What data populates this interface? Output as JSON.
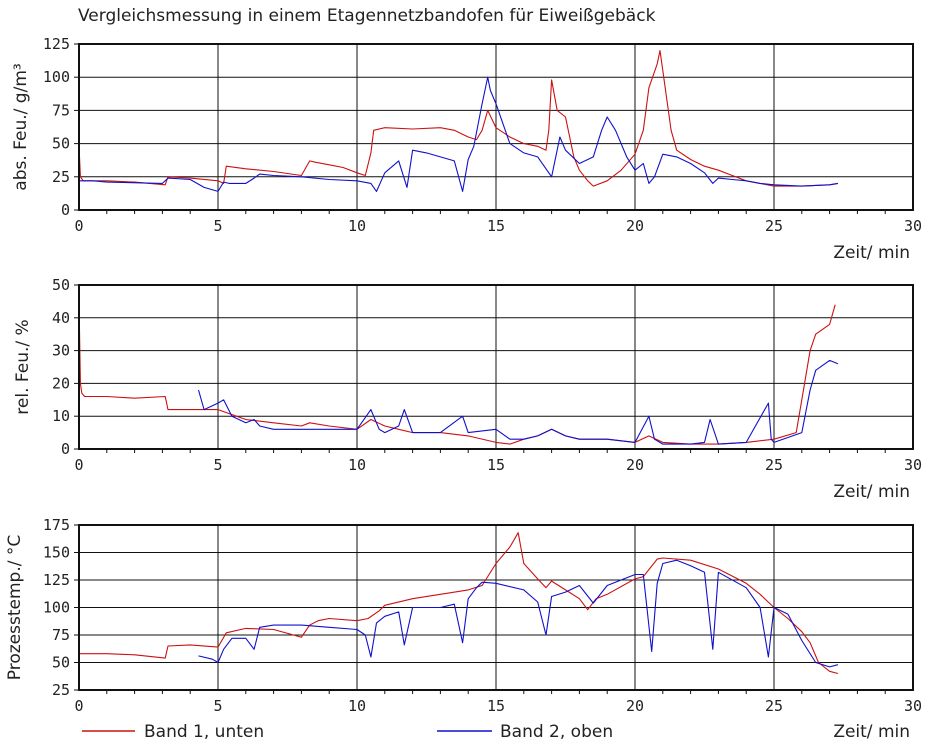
{
  "figure": {
    "title": "Vergleichsmessung in einem Etagennetzbandofen für Eiweißgebäck",
    "legend": [
      {
        "label": "Band 1, unten",
        "color": "#cc1111"
      },
      {
        "label": "Band 2, oben",
        "color": "#1111cc"
      }
    ]
  },
  "chart_data": [
    {
      "type": "line",
      "ylabel": "abs. Feu./ g/m³",
      "xlabel": "Zeit/ min",
      "xlim": [
        0,
        30
      ],
      "ylim": [
        0,
        125
      ],
      "xticks": [
        "0",
        "5",
        "10",
        "15",
        "20",
        "25",
        "30"
      ],
      "yticks": [
        "0",
        "25",
        "50",
        "75",
        "100",
        "125"
      ],
      "grid": true,
      "series": [
        {
          "name": "Band 1, unten",
          "color": "#cc1111",
          "x": [
            0,
            0.05,
            0.15,
            1,
            2,
            3.1,
            3.2,
            4,
            5,
            5.2,
            5.3,
            6,
            7,
            8,
            8.3,
            8.5,
            9,
            9.5,
            10,
            10.3,
            10.5,
            10.6,
            11,
            12,
            13,
            13.5,
            14,
            14.3,
            14.5,
            14.7,
            15,
            15.5,
            16,
            16.5,
            16.8,
            16.9,
            17,
            17.2,
            17.5,
            17.8,
            18,
            18.3,
            18.5,
            19,
            19.5,
            20,
            20.3,
            20.5,
            20.8,
            20.9,
            21,
            21.3,
            21.5,
            22,
            22.5,
            23,
            23.5,
            24,
            24.5,
            25,
            26,
            27,
            27.3
          ],
          "y": [
            48,
            25,
            22,
            22,
            21,
            19,
            25,
            24,
            22,
            20,
            33,
            31,
            29,
            26,
            37,
            36,
            34,
            32,
            28,
            26,
            43,
            60,
            62,
            61,
            62,
            60,
            55,
            53,
            60,
            75,
            62,
            55,
            50,
            48,
            45,
            60,
            98,
            75,
            70,
            40,
            30,
            22,
            18,
            22,
            30,
            42,
            60,
            92,
            110,
            120,
            105,
            60,
            45,
            38,
            33,
            30,
            26,
            22,
            20,
            18,
            18,
            19,
            20
          ]
        },
        {
          "name": "Band 2, oben",
          "color": "#1111cc",
          "x": [
            0,
            0.5,
            1,
            3,
            3.2,
            4,
            4.5,
            5,
            5.2,
            5.4,
            6,
            6.3,
            6.5,
            7,
            8,
            9,
            10,
            10.5,
            10.7,
            11,
            11.5,
            11.8,
            12,
            12.5,
            13,
            13.5,
            13.8,
            14,
            14.2,
            14.5,
            14.7,
            14.8,
            15,
            15.5,
            16,
            16.5,
            17,
            17.3,
            17.5,
            18,
            18.5,
            18.8,
            19,
            19.3,
            19.7,
            20,
            20.3,
            20.5,
            20.7,
            21,
            21.5,
            22,
            22.5,
            22.8,
            23,
            23.5,
            24,
            24.5,
            25,
            26,
            27,
            27.3
          ],
          "y": [
            22,
            22,
            21,
            20,
            24,
            23,
            17,
            14,
            21,
            20,
            20,
            24,
            27,
            26,
            25,
            23,
            22,
            20,
            14,
            28,
            37,
            17,
            45,
            43,
            40,
            37,
            14,
            38,
            48,
            80,
            100,
            90,
            80,
            50,
            43,
            40,
            25,
            55,
            45,
            35,
            40,
            60,
            70,
            60,
            40,
            30,
            35,
            20,
            25,
            42,
            40,
            35,
            28,
            20,
            24,
            23,
            22,
            20,
            19,
            18,
            19,
            20
          ]
        }
      ]
    },
    {
      "type": "line",
      "ylabel": "rel. Feu./ %",
      "xlabel": "Zeit/ min",
      "xlim": [
        0,
        30
      ],
      "ylim": [
        0,
        50
      ],
      "xticks": [
        "0",
        "5",
        "10",
        "15",
        "20",
        "25",
        "30"
      ],
      "yticks": [
        "0",
        "10",
        "20",
        "30",
        "40",
        "50"
      ],
      "grid": true,
      "series": [
        {
          "name": "Band 1, unten",
          "color": "#cc1111",
          "x": [
            0,
            0.05,
            0.1,
            0.2,
            1,
            2,
            3.1,
            3.2,
            4,
            5,
            6,
            7,
            8,
            8.3,
            9,
            10,
            10.5,
            11,
            11.5,
            12,
            13,
            14,
            15,
            15.5,
            16,
            16.5,
            17,
            17.5,
            18,
            19,
            20,
            20.5,
            21,
            22,
            23,
            24,
            25,
            25.8,
            26,
            26.3,
            26.5,
            27,
            27.2
          ],
          "y": [
            45,
            20,
            17,
            16,
            16,
            15.5,
            16,
            12,
            12,
            12,
            9,
            8,
            7,
            8,
            7,
            6,
            9,
            7,
            6,
            5,
            5,
            4,
            2,
            1.5,
            3,
            4,
            6,
            4,
            3,
            3,
            2,
            4,
            2,
            1.5,
            1.5,
            2,
            3,
            5,
            15,
            30,
            35,
            38,
            44
          ]
        },
        {
          "name": "Band 2, oben",
          "color": "#1111cc",
          "x": [
            4.3,
            4.5,
            5,
            5.2,
            5.5,
            6,
            6.3,
            6.5,
            7,
            8,
            9,
            10,
            10.5,
            10.8,
            11,
            11.5,
            11.7,
            12,
            13,
            13.8,
            14,
            15,
            15.5,
            16,
            16.5,
            17,
            17.5,
            18,
            19,
            20,
            20.5,
            20.7,
            21,
            22,
            22.5,
            22.7,
            23,
            24,
            24.8,
            24.9,
            25,
            26,
            26.3,
            26.5,
            27,
            27.3
          ],
          "y": [
            18,
            12,
            14,
            15,
            10,
            8,
            9,
            7,
            6,
            6,
            6,
            6,
            12,
            6,
            5,
            7,
            12,
            5,
            5,
            10,
            5,
            6,
            3,
            3,
            4,
            6,
            4,
            3,
            3,
            2,
            10,
            3,
            1.5,
            1.5,
            2,
            9,
            1.5,
            2,
            14,
            3,
            2,
            5,
            18,
            24,
            27,
            26
          ]
        }
      ]
    },
    {
      "type": "line",
      "ylabel": "Prozesstemp./ °C",
      "xlabel": "Zeit/ min",
      "xlim": [
        0,
        30
      ],
      "ylim": [
        25,
        175
      ],
      "xticks": [
        "0",
        "5",
        "10",
        "15",
        "20",
        "25",
        "30"
      ],
      "yticks": [
        "25",
        "50",
        "75",
        "100",
        "125",
        "150",
        "175"
      ],
      "grid": true,
      "series": [
        {
          "name": "Band 1, unten",
          "color": "#cc1111",
          "x": [
            0,
            1,
            2,
            3.1,
            3.2,
            4,
            5,
            5.3,
            6,
            7,
            8,
            8.3,
            8.6,
            9,
            10,
            10.4,
            10.8,
            11,
            12,
            13,
            14,
            14.5,
            15,
            15.5,
            15.8,
            16,
            16.5,
            16.8,
            17,
            17.5,
            18,
            18.3,
            18.6,
            19,
            20,
            20.3,
            20.8,
            21,
            22,
            23,
            24,
            24.5,
            25,
            25.5,
            26,
            26.3,
            26.6,
            27,
            27.3
          ],
          "y": [
            58,
            58,
            57,
            54,
            65,
            66,
            64,
            77,
            81,
            80,
            73,
            84,
            88,
            90,
            88,
            90,
            97,
            102,
            108,
            112,
            116,
            120,
            140,
            155,
            168,
            140,
            126,
            118,
            124,
            116,
            108,
            98,
            108,
            112,
            126,
            128,
            144,
            145,
            143,
            135,
            122,
            112,
            100,
            90,
            78,
            68,
            50,
            42,
            40
          ]
        },
        {
          "name": "Band 2, oben",
          "color": "#1111cc",
          "x": [
            4.3,
            4.8,
            5,
            5.2,
            5.5,
            6,
            6.3,
            6.5,
            7,
            8,
            9,
            10,
            10.3,
            10.5,
            10.7,
            11,
            11.5,
            11.7,
            12,
            13,
            13.5,
            13.8,
            14,
            14.3,
            14.5,
            15,
            16,
            16.5,
            16.8,
            17,
            17.5,
            18,
            18.5,
            19,
            20,
            20.3,
            20.6,
            20.8,
            21,
            21.5,
            22,
            22.5,
            22.8,
            23,
            24,
            24.5,
            24.8,
            25,
            25.5,
            26,
            26.5,
            27,
            27.3
          ],
          "y": [
            56,
            53,
            50,
            62,
            72,
            72,
            62,
            82,
            84,
            84,
            82,
            80,
            75,
            55,
            86,
            92,
            96,
            66,
            100,
            100,
            103,
            68,
            108,
            118,
            123,
            122,
            116,
            105,
            75,
            110,
            114,
            120,
            104,
            120,
            130,
            130,
            60,
            122,
            140,
            143,
            138,
            132,
            62,
            132,
            118,
            100,
            55,
            100,
            94,
            70,
            50,
            46,
            48
          ]
        }
      ]
    }
  ]
}
